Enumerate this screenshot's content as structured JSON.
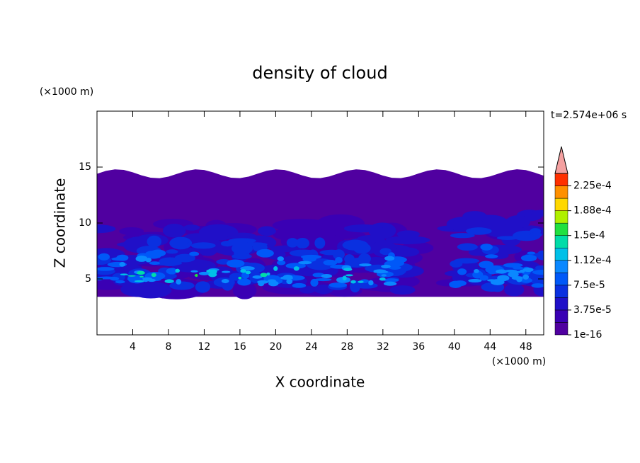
{
  "chart_data": {
    "type": "contour",
    "title": "density of cloud",
    "xlabel": "X coordinate",
    "ylabel": "Z coordinate",
    "xunit": "(×1000 m)",
    "yunit": "(×1000 m)",
    "time_label": "t=2.574e+06 s",
    "xlim": [
      0,
      50
    ],
    "ylim": [
      0,
      20
    ],
    "xticks": [
      4,
      8,
      12,
      16,
      20,
      24,
      28,
      32,
      36,
      40,
      44,
      48
    ],
    "yticks": [
      5,
      10,
      15
    ],
    "colorbar": {
      "levels": [
        1e-16,
        1.875e-05,
        3.75e-05,
        5.625e-05,
        7.5e-05,
        9.375e-05,
        0.0001125,
        0.00013125,
        0.00015,
        0.00016875,
        0.0001875,
        0.00020625,
        0.000225,
        0.00024375
      ],
      "colors": [
        "#5000a0",
        "#3a00b4",
        "#2010c8",
        "#0a30e0",
        "#0058f8",
        "#0a88ff",
        "#00c0e8",
        "#00dca8",
        "#20e040",
        "#b0f000",
        "#ffd800",
        "#ff9000",
        "#ff3000"
      ],
      "extend_color": "#f4a0a0",
      "ticks": [
        {
          "value": 1e-16,
          "label": "1e-16"
        },
        {
          "value": 3.75e-05,
          "label": "3.75e-5"
        },
        {
          "value": 7.5e-05,
          "label": "7.5e-5"
        },
        {
          "value": 0.0001125,
          "label": "1.12e-4"
        },
        {
          "value": 0.00015,
          "label": "1.5e-4"
        },
        {
          "value": 0.0001875,
          "label": "1.88e-4"
        },
        {
          "value": 0.000225,
          "label": "2.25e-4"
        }
      ]
    }
  }
}
